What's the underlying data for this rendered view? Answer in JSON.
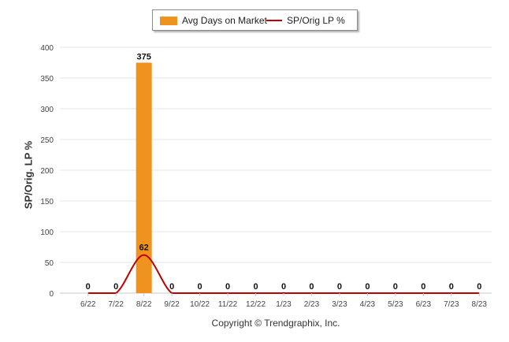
{
  "legend": {
    "bar_label": "Avg Days on Market",
    "line_label": "SP/Orig LP %"
  },
  "chart_data": {
    "type": "bar",
    "categories": [
      "6/22",
      "7/22",
      "8/22",
      "9/22",
      "10/22",
      "11/22",
      "12/22",
      "1/23",
      "2/23",
      "3/23",
      "4/23",
      "5/23",
      "6/23",
      "7/23",
      "8/23"
    ],
    "series": [
      {
        "name": "Avg Days on Market",
        "type": "bar",
        "color": "#f0921e",
        "values": [
          0,
          0,
          375,
          0,
          0,
          0,
          0,
          0,
          0,
          0,
          0,
          0,
          0,
          0,
          0
        ]
      },
      {
        "name": "SP/Orig LP %",
        "type": "line",
        "color": "#c00000",
        "values": [
          0,
          0,
          62,
          0,
          0,
          0,
          0,
          0,
          0,
          0,
          0,
          0,
          0,
          0,
          0
        ]
      }
    ],
    "ylabel": "SP/Orig. LP %",
    "ylim": [
      0,
      400
    ],
    "yticks": [
      0,
      50,
      100,
      150,
      200,
      250,
      300,
      350,
      400
    ],
    "grid": true,
    "legend_position": "top-center"
  },
  "footer": {
    "copyright": "Copyright © Trendgraphix, Inc."
  }
}
